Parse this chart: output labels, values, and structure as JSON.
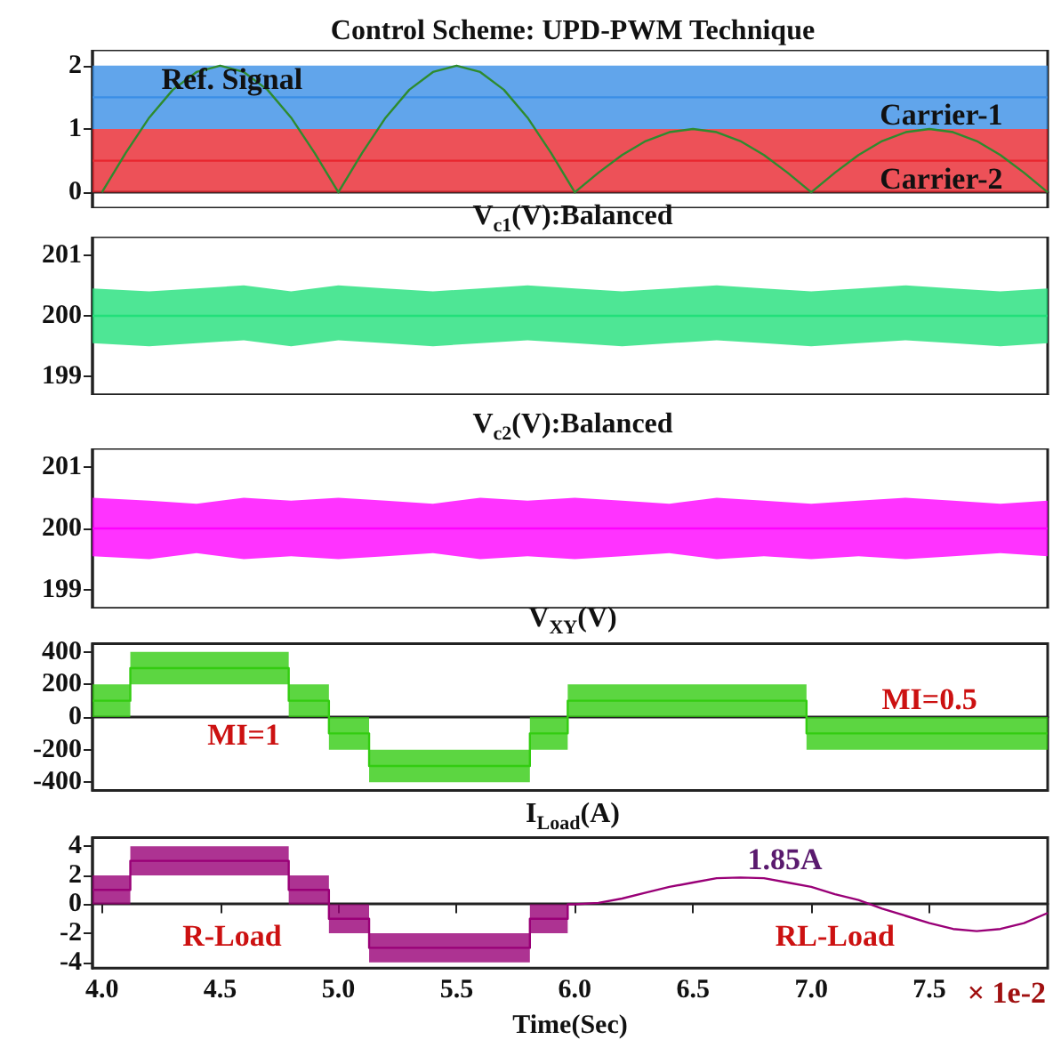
{
  "chart_data": [
    {
      "type": "line",
      "title": "Control Scheme: UPD-PWM Technique",
      "xlim": [
        3.96,
        8.0
      ],
      "ylim": [
        -0.25,
        2.25
      ],
      "yticks": [
        0,
        1,
        2
      ],
      "tick_labels": "y",
      "series": [
        {
          "name": "Carrier-1",
          "color": "#3a8ee6",
          "x": [
            3.96,
            8.0
          ],
          "values": [
            1.5,
            1.5
          ],
          "lower": [
            1,
            1
          ],
          "upper": [
            2,
            2
          ]
        },
        {
          "name": "Carrier-2",
          "color": "#e8262e",
          "x": [
            3.96,
            8.0
          ],
          "values": [
            0.5,
            0.5
          ],
          "lower": [
            0,
            0
          ],
          "upper": [
            1,
            1
          ]
        },
        {
          "name": "Ref. Signal",
          "color": "#2e8b2e",
          "x": [
            4.0,
            4.1,
            4.2,
            4.3,
            4.4,
            4.5,
            4.6,
            4.7,
            4.8,
            4.9,
            5.0,
            5.1,
            5.2,
            5.3,
            5.4,
            5.5,
            5.6,
            5.7,
            5.8,
            5.9,
            6.0,
            6.1,
            6.2,
            6.3,
            6.4,
            6.5,
            6.6,
            6.7,
            6.8,
            6.9,
            7.0,
            7.1,
            7.2,
            7.3,
            7.4,
            7.5,
            7.6,
            7.7,
            7.8,
            7.9,
            8.0
          ],
          "values": [
            0,
            0.62,
            1.18,
            1.62,
            1.9,
            2,
            1.9,
            1.62,
            1.18,
            0.62,
            0,
            0.62,
            1.18,
            1.62,
            1.9,
            2,
            1.9,
            1.62,
            1.18,
            0.62,
            0,
            0.31,
            0.59,
            0.81,
            0.95,
            1,
            0.95,
            0.81,
            0.59,
            0.31,
            0,
            0.31,
            0.59,
            0.81,
            0.95,
            1,
            0.95,
            0.81,
            0.59,
            0.31,
            0
          ]
        }
      ]
    },
    {
      "type": "line",
      "title": "V$_{c1}$(V):Balanced",
      "xlim": [
        3.96,
        8.0
      ],
      "ylim": [
        198.7,
        201.3
      ],
      "yticks": [
        199,
        200,
        201
      ],
      "tick_labels": "y",
      "series": [
        {
          "color": "#22e07a",
          "x": [
            3.96,
            4.2,
            4.4,
            4.6,
            4.8,
            5.0,
            5.2,
            5.4,
            5.6,
            5.8,
            6.0,
            6.2,
            6.4,
            6.6,
            6.8,
            7.0,
            7.2,
            7.4,
            7.6,
            7.8,
            8.0
          ],
          "values": [
            200,
            200,
            200,
            200,
            200,
            200,
            200,
            200,
            200,
            200,
            200,
            200,
            200,
            200,
            200,
            200,
            200,
            200,
            200,
            200,
            200
          ],
          "upper": [
            200.45,
            200.4,
            200.45,
            200.5,
            200.4,
            200.5,
            200.45,
            200.4,
            200.45,
            200.5,
            200.45,
            200.4,
            200.45,
            200.5,
            200.45,
            200.4,
            200.45,
            200.5,
            200.45,
            200.4,
            200.45
          ],
          "lower": [
            199.55,
            199.5,
            199.55,
            199.6,
            199.5,
            199.6,
            199.55,
            199.5,
            199.55,
            199.6,
            199.55,
            199.5,
            199.55,
            199.6,
            199.55,
            199.5,
            199.55,
            199.6,
            199.55,
            199.5,
            199.55
          ]
        }
      ]
    },
    {
      "type": "line",
      "title": "V$_{c2}$(V):Balanced",
      "xlim": [
        3.96,
        8.0
      ],
      "ylim": [
        198.7,
        201.3
      ],
      "yticks": [
        199,
        200,
        201
      ],
      "tick_labels": "y",
      "series": [
        {
          "color": "#ff00ff",
          "x": [
            3.96,
            4.2,
            4.4,
            4.6,
            4.8,
            5.0,
            5.2,
            5.4,
            5.6,
            5.8,
            6.0,
            6.2,
            6.4,
            6.6,
            6.8,
            7.0,
            7.2,
            7.4,
            7.6,
            7.8,
            8.0
          ],
          "values": [
            200,
            200,
            200,
            200,
            200,
            200,
            200,
            200,
            200,
            200,
            200,
            200,
            200,
            200,
            200,
            200,
            200,
            200,
            200,
            200,
            200
          ],
          "upper": [
            200.5,
            200.45,
            200.4,
            200.5,
            200.45,
            200.5,
            200.45,
            200.4,
            200.5,
            200.45,
            200.5,
            200.45,
            200.4,
            200.5,
            200.45,
            200.4,
            200.45,
            200.5,
            200.45,
            200.4,
            200.45
          ],
          "lower": [
            199.55,
            199.5,
            199.6,
            199.5,
            199.55,
            199.5,
            199.55,
            199.6,
            199.5,
            199.55,
            199.5,
            199.55,
            199.6,
            199.5,
            199.55,
            199.5,
            199.55,
            199.5,
            199.55,
            199.6,
            199.55
          ]
        }
      ]
    },
    {
      "type": "line",
      "title": "V$_{XY}$(V)",
      "xlim": [
        3.96,
        8.0
      ],
      "ylim": [
        -450,
        450
      ],
      "yticks": [
        -400,
        -200,
        0,
        200,
        400
      ],
      "tick_labels": "y",
      "annotations": [
        "MI=1",
        "MI=0.5"
      ],
      "series": [
        {
          "color": "#33cc11",
          "x": [
            3.96,
            4.12,
            4.12,
            4.79,
            4.79,
            4.96,
            4.96,
            5.13,
            5.13,
            5.81,
            5.81,
            5.97,
            5.97,
            6.98,
            6.98,
            8.0
          ],
          "values": [
            100,
            100,
            300,
            300,
            100,
            100,
            -100,
            -100,
            -300,
            -300,
            -100,
            -100,
            100,
            100,
            -100,
            -100
          ],
          "upper": [
            200,
            200,
            400,
            400,
            200,
            200,
            0,
            0,
            -200,
            -200,
            0,
            0,
            200,
            200,
            0,
            0
          ],
          "lower": [
            0,
            0,
            200,
            200,
            0,
            0,
            -200,
            -200,
            -400,
            -400,
            -200,
            -200,
            0,
            0,
            -200,
            -200
          ]
        }
      ]
    },
    {
      "type": "line",
      "title": "I$_{Load}$(A)",
      "xlabel": "Time(Sec)",
      "xlim": [
        3.96,
        8.0
      ],
      "xticks": [
        {
          "value": 4,
          "label": "4.0"
        },
        4.5,
        {
          "value": 5,
          "label": "5.0"
        },
        5.5,
        {
          "value": 6,
          "label": "6.0"
        },
        6.5,
        {
          "value": 7,
          "label": "7.0"
        },
        7.5
      ],
      "ylim": [
        -4.4,
        4.6
      ],
      "yticks": [
        -4,
        -2,
        0,
        2,
        4
      ],
      "annotations": [
        "R-Load",
        "RL-Load",
        {
          "text": "1.85A",
          "x": 6.7,
          "y": 1.85
        },
        "× 1e-2"
      ],
      "series": [
        {
          "color": "#990077",
          "x": [
            3.96,
            4.12,
            4.12,
            4.79,
            4.79,
            4.96,
            4.96,
            5.13,
            5.13,
            5.81,
            5.81,
            5.97,
            5.97,
            6.0,
            6.1,
            6.2,
            6.3,
            6.4,
            6.5,
            6.6,
            6.7,
            6.8,
            6.9,
            7.0,
            7.1,
            7.2,
            7.3,
            7.4,
            7.5,
            7.6,
            7.7,
            7.8,
            7.9,
            8.0
          ],
          "values": [
            1,
            1,
            3,
            3,
            1,
            1,
            -1,
            -1,
            -3,
            -3,
            -1,
            -1,
            0,
            0,
            0.1,
            0.4,
            0.8,
            1.2,
            1.5,
            1.8,
            1.85,
            1.8,
            1.5,
            1.2,
            0.7,
            0.3,
            -0.3,
            -0.8,
            -1.3,
            -1.7,
            -1.85,
            -1.7,
            -1.3,
            -0.6
          ],
          "upper": [
            2,
            2,
            4,
            4,
            2,
            2,
            0,
            0,
            -2,
            -2,
            0,
            0,
            0,
            0,
            0.1,
            0.4,
            0.8,
            1.2,
            1.5,
            1.8,
            1.85,
            1.8,
            1.5,
            1.2,
            0.7,
            0.3,
            -0.3,
            -0.8,
            -1.3,
            -1.7,
            -1.85,
            -1.7,
            -1.3,
            -0.6
          ],
          "lower": [
            0,
            0,
            2,
            2,
            0,
            0,
            -2,
            -2,
            -4,
            -4,
            -2,
            -2,
            0,
            0,
            0.1,
            0.4,
            0.8,
            1.2,
            1.5,
            1.8,
            1.85,
            1.8,
            1.5,
            1.2,
            0.7,
            0.3,
            -0.3,
            -0.8,
            -1.3,
            -1.7,
            -1.85,
            -1.7,
            -1.3,
            -0.6
          ]
        }
      ]
    }
  ]
}
